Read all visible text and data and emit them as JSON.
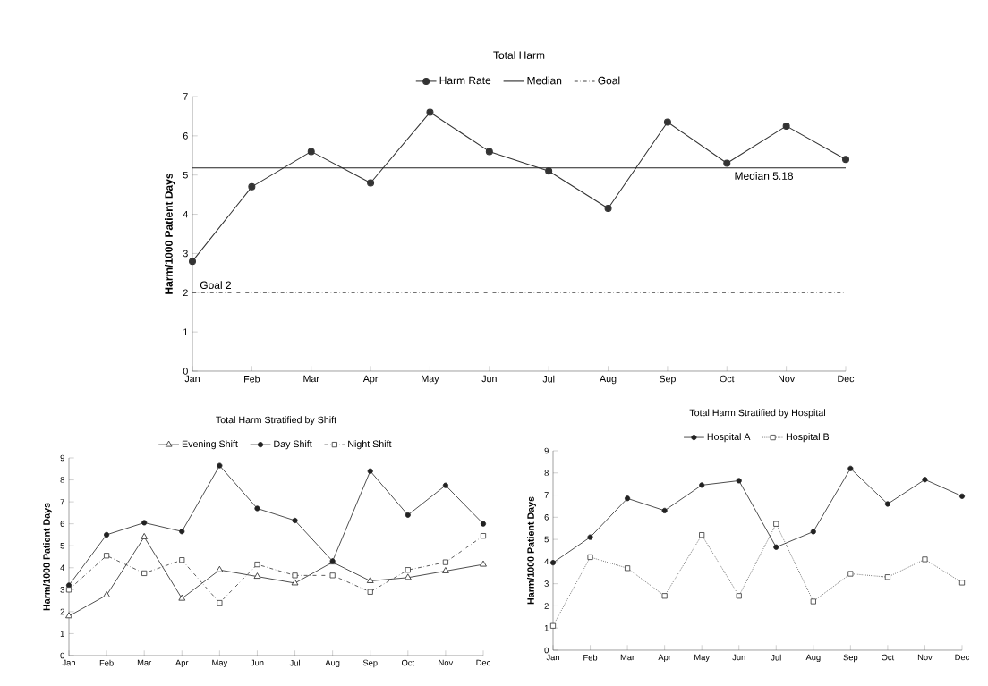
{
  "chart_data": [
    {
      "type": "line",
      "title": "Total Harm",
      "ylabel": "Harm/1000 Patient Days",
      "categories": [
        "Jan",
        "Feb",
        "Mar",
        "Apr",
        "May",
        "Jun",
        "Jul",
        "Aug",
        "Sep",
        "Oct",
        "Nov",
        "Dec"
      ],
      "series": [
        {
          "name": "Harm Rate",
          "color": "#333333",
          "marker": "circle",
          "line_style": "solid",
          "values": [
            2.8,
            4.7,
            5.6,
            4.8,
            6.6,
            5.6,
            5.1,
            4.15,
            6.35,
            5.3,
            6.25,
            5.4
          ]
        },
        {
          "name": "Median",
          "color": "#222222",
          "marker": "none",
          "line_style": "solid",
          "values": [
            5.18,
            5.18,
            5.18,
            5.18,
            5.18,
            5.18,
            5.18,
            5.18,
            5.18,
            5.18,
            5.18,
            5.18
          ]
        },
        {
          "name": "Goal",
          "color": "#444444",
          "marker": "none",
          "line_style": "dashed",
          "values": [
            2,
            2,
            2,
            2,
            2,
            2,
            2,
            2,
            2,
            2,
            2,
            2
          ]
        }
      ],
      "annotations": [
        {
          "text": "Median 5.18",
          "x": "Oct",
          "y": 5.18
        },
        {
          "text": "Goal 2",
          "x": "Jan",
          "y": 2
        }
      ],
      "ylim": [
        0,
        7
      ],
      "yticks": [
        0,
        1,
        2,
        3,
        4,
        5,
        6,
        7
      ],
      "legend": "top"
    },
    {
      "type": "line",
      "title": "Total Harm Stratified by Shift",
      "ylabel": "Harm/1000 Patient Days",
      "categories": [
        "Jan",
        "Feb",
        "Mar",
        "Apr",
        "May",
        "Jun",
        "Jul",
        "Aug",
        "Sep",
        "Oct",
        "Nov",
        "Dec"
      ],
      "series": [
        {
          "name": "Evening Shift",
          "color": "#222222",
          "marker": "triangle",
          "line_style": "solid",
          "values": [
            1.8,
            2.75,
            5.4,
            2.6,
            3.9,
            3.6,
            3.3,
            4.25,
            3.4,
            3.55,
            3.85,
            4.15
          ]
        },
        {
          "name": "Day Shift",
          "color": "#222222",
          "marker": "circle",
          "line_style": "solid",
          "values": [
            3.2,
            5.5,
            6.05,
            5.65,
            8.65,
            6.7,
            6.15,
            4.3,
            8.4,
            6.4,
            7.75,
            6.0
          ]
        },
        {
          "name": "Night Shift",
          "color": "#333333",
          "marker": "square",
          "line_style": "dashed",
          "values": [
            3.0,
            4.55,
            3.75,
            4.35,
            2.4,
            4.15,
            3.65,
            3.65,
            2.9,
            3.9,
            4.25,
            5.45
          ]
        }
      ],
      "ylim": [
        0,
        9
      ],
      "yticks": [
        0,
        1,
        2,
        3,
        4,
        5,
        6,
        7,
        8,
        9
      ],
      "legend": "top"
    },
    {
      "type": "line",
      "title": "Total Harm Stratified by Hospital",
      "ylabel": "Harm/1000 Patient Days",
      "categories": [
        "Jan",
        "Feb",
        "Mar",
        "Apr",
        "May",
        "Jun",
        "Jul",
        "Aug",
        "Sep",
        "Oct",
        "Nov",
        "Dec"
      ],
      "series": [
        {
          "name": "Hospital A",
          "color": "#222222",
          "marker": "circle",
          "line_style": "solid",
          "values": [
            3.95,
            5.1,
            6.85,
            6.3,
            7.45,
            7.65,
            4.65,
            5.35,
            8.2,
            6.6,
            7.7,
            6.95
          ]
        },
        {
          "name": "Hospital B",
          "color": "#333333",
          "marker": "square",
          "line_style": "dotted",
          "values": [
            1.1,
            4.2,
            3.7,
            2.45,
            5.2,
            2.45,
            5.7,
            2.2,
            3.45,
            3.3,
            4.1,
            3.05
          ]
        }
      ],
      "ylim": [
        0,
        9
      ],
      "yticks": [
        0,
        1,
        2,
        3,
        4,
        5,
        6,
        7,
        8,
        9
      ],
      "legend": "top"
    }
  ]
}
